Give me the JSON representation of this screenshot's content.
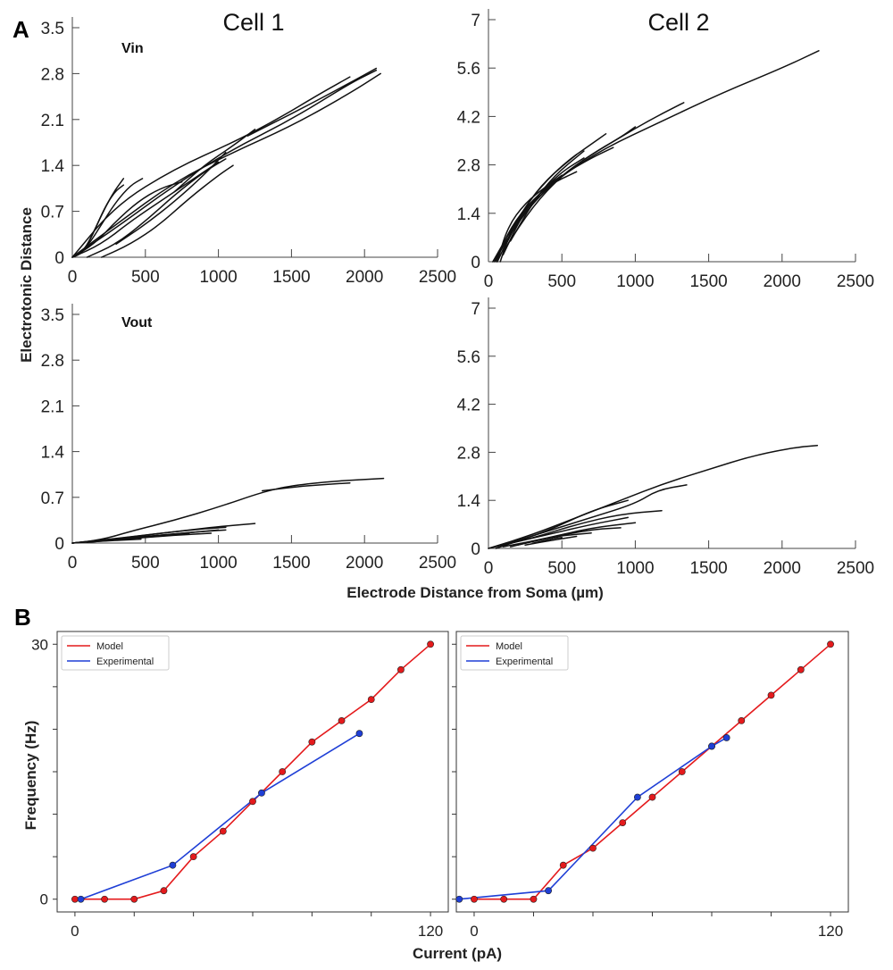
{
  "panel_a_label": "A",
  "panel_b_label": "B",
  "chart_data": [
    {
      "id": "a1",
      "type": "line",
      "title": "Cell 1",
      "annotation": "Vin",
      "ylabel": "Electrotonic Distance",
      "xlabel": "",
      "xlim": [
        0,
        2500
      ],
      "ylim": [
        0,
        3.5
      ],
      "xticks": [
        "0",
        "500",
        "1000",
        "1500",
        "2000",
        "2500"
      ],
      "yticks": [
        "0",
        "0.7",
        "1.4",
        "2.1",
        "2.8",
        "3.5"
      ],
      "series": [
        {
          "x": [
            0,
            60,
            120,
            190,
            270,
            350
          ],
          "y": [
            0,
            0.05,
            0.25,
            0.6,
            0.95,
            1.2
          ]
        },
        {
          "x": [
            0,
            80,
            150,
            220,
            290,
            350
          ],
          "y": [
            0,
            0.1,
            0.4,
            0.75,
            1.0,
            1.1
          ]
        },
        {
          "x": [
            0,
            100,
            200,
            300,
            400,
            480
          ],
          "y": [
            0,
            0.15,
            0.5,
            0.85,
            1.1,
            1.2
          ]
        },
        {
          "x": [
            0,
            150,
            300,
            450,
            600,
            750
          ],
          "y": [
            0,
            0.2,
            0.55,
            0.85,
            1.05,
            1.15
          ]
        },
        {
          "x": [
            0,
            200,
            400,
            600,
            800,
            1000
          ],
          "y": [
            0,
            0.2,
            0.55,
            0.85,
            1.15,
            1.45
          ]
        },
        {
          "x": [
            100,
            300,
            500,
            700,
            900,
            1050
          ],
          "y": [
            0,
            0.2,
            0.55,
            0.95,
            1.3,
            1.5
          ]
        },
        {
          "x": [
            200,
            400,
            600,
            800,
            1000,
            1100
          ],
          "y": [
            0,
            0.2,
            0.5,
            0.9,
            1.25,
            1.4
          ]
        },
        {
          "x": [
            300,
            500,
            700,
            900,
            1050
          ],
          "y": [
            0.2,
            0.5,
            0.85,
            1.25,
            1.6
          ]
        },
        {
          "x": [
            0,
            300,
            700,
            1100,
            1500,
            1900,
            2080
          ],
          "y": [
            0,
            0.45,
            1.1,
            1.65,
            2.1,
            2.65,
            2.85
          ]
        },
        {
          "x": [
            0,
            300,
            700,
            1100,
            1500,
            1900,
            2110
          ],
          "y": [
            0,
            0.5,
            1.15,
            1.6,
            2.0,
            2.5,
            2.8
          ]
        },
        {
          "x": [
            0,
            300,
            700,
            1100,
            1400,
            1700,
            1900
          ],
          "y": [
            0,
            0.8,
            1.35,
            1.75,
            2.1,
            2.5,
            2.75
          ]
        },
        {
          "x": [
            1200,
            1600,
            2000,
            2080
          ],
          "y": [
            1.85,
            2.3,
            2.78,
            2.88
          ]
        },
        {
          "x": [
            700,
            900,
            1100,
            1250
          ],
          "y": [
            1.0,
            1.4,
            1.7,
            1.95
          ]
        }
      ]
    },
    {
      "id": "a2",
      "type": "line",
      "title": "Cell 2",
      "annotation": "",
      "ylabel": "",
      "xlabel": "",
      "xlim": [
        0,
        2500
      ],
      "ylim": [
        0,
        7
      ],
      "xticks": [
        "0",
        "500",
        "1000",
        "1500",
        "2000",
        "2500"
      ],
      "yticks": [
        "0",
        "1.4",
        "2.8",
        "4.2",
        "5.6",
        "7"
      ],
      "series": [
        {
          "x": [
            30,
            150,
            300,
            500,
            800,
            1150,
            1600,
            2000,
            2250
          ],
          "y": [
            0,
            0.8,
            1.7,
            2.5,
            3.3,
            4.0,
            4.9,
            5.6,
            6.1
          ]
        },
        {
          "x": [
            30,
            150,
            300,
            500,
            700,
            800
          ],
          "y": [
            0,
            0.9,
            1.9,
            2.8,
            3.4,
            3.7
          ]
        },
        {
          "x": [
            40,
            150,
            300,
            500,
            700,
            900,
            1000
          ],
          "y": [
            0,
            0.8,
            1.7,
            2.5,
            3.1,
            3.6,
            3.9
          ]
        },
        {
          "x": [
            50,
            150,
            300,
            500,
            700,
            850
          ],
          "y": [
            0,
            1.0,
            1.8,
            2.5,
            3.0,
            3.3
          ]
        },
        {
          "x": [
            60,
            150,
            250,
            400,
            600
          ],
          "y": [
            0,
            0.8,
            1.5,
            2.2,
            2.6
          ]
        },
        {
          "x": [
            60,
            130,
            250,
            400,
            500
          ],
          "y": [
            0,
            1.0,
            1.7,
            2.2,
            2.5
          ]
        },
        {
          "x": [
            80,
            150,
            250,
            350
          ],
          "y": [
            0,
            0.9,
            1.5,
            1.9
          ]
        },
        {
          "x": [
            100,
            200,
            300,
            450
          ],
          "y": [
            0.2,
            1.1,
            1.8,
            2.3
          ]
        },
        {
          "x": [
            100,
            300,
            500,
            700,
            900,
            1100,
            1330
          ],
          "y": [
            0.3,
            1.6,
            2.5,
            3.1,
            3.6,
            4.1,
            4.6
          ]
        },
        {
          "x": [
            120,
            250,
            400,
            600
          ],
          "y": [
            0.5,
            1.6,
            2.4,
            3.1
          ]
        },
        {
          "x": [
            150,
            300,
            450,
            650
          ],
          "y": [
            0.6,
            1.7,
            2.5,
            3.2
          ]
        },
        {
          "x": [
            200,
            350,
            500,
            650
          ],
          "y": [
            1.2,
            2.0,
            2.6,
            3.0
          ]
        }
      ]
    },
    {
      "id": "a3",
      "type": "line",
      "title": "",
      "annotation": "Vout",
      "ylabel": "",
      "xlabel": "",
      "xlim": [
        0,
        2500
      ],
      "ylim": [
        0,
        3.5
      ],
      "xticks": [
        "0",
        "500",
        "1000",
        "1500",
        "2000",
        "2500"
      ],
      "yticks": [
        "0",
        "0.7",
        "1.4",
        "2.1",
        "2.8",
        "3.5"
      ],
      "series": [
        {
          "x": [
            0,
            200,
            400,
            700,
            1000,
            1300,
            1500,
            1800,
            2130
          ],
          "y": [
            0,
            0.05,
            0.18,
            0.35,
            0.55,
            0.78,
            0.88,
            0.95,
            0.99
          ]
        },
        {
          "x": [
            1300,
            1600,
            1900
          ],
          "y": [
            0.8,
            0.88,
            0.92
          ]
        },
        {
          "x": [
            0,
            200,
            500,
            800,
            1000,
            1250
          ],
          "y": [
            0,
            0.04,
            0.12,
            0.2,
            0.25,
            0.3
          ]
        },
        {
          "x": [
            0,
            300,
            600,
            900,
            1050
          ],
          "y": [
            0,
            0.07,
            0.15,
            0.22,
            0.24
          ]
        },
        {
          "x": [
            0,
            300,
            600,
            900,
            1050
          ],
          "y": [
            0,
            0.06,
            0.12,
            0.18,
            0.2
          ]
        },
        {
          "x": [
            100,
            400,
            700,
            1000
          ],
          "y": [
            0.02,
            0.08,
            0.14,
            0.2
          ]
        },
        {
          "x": [
            100,
            400,
            700,
            950
          ],
          "y": [
            0.01,
            0.07,
            0.12,
            0.15
          ]
        },
        {
          "x": [
            200,
            500,
            800
          ],
          "y": [
            0.03,
            0.09,
            0.14
          ]
        },
        {
          "x": [
            0,
            200,
            470
          ],
          "y": [
            0,
            0.03,
            0.06
          ]
        }
      ]
    },
    {
      "id": "a4",
      "type": "line",
      "title": "",
      "annotation": "",
      "ylabel": "",
      "xlabel": "",
      "xlim": [
        0,
        2500
      ],
      "ylim": [
        0,
        7
      ],
      "xticks": [
        "0",
        "500",
        "1000",
        "1500",
        "2000",
        "2500"
      ],
      "yticks": [
        "0",
        "1.4",
        "2.8",
        "4.2",
        "5.6",
        "7"
      ],
      "series": [
        {
          "x": [
            0,
            300,
            600,
            900,
            1200,
            1500,
            1800,
            2100,
            2240
          ],
          "y": [
            0,
            0.4,
            0.9,
            1.4,
            1.9,
            2.3,
            2.7,
            2.95,
            3.0
          ]
        },
        {
          "x": [
            100,
            400,
            700,
            1000,
            1150,
            1350
          ],
          "y": [
            0.1,
            0.5,
            0.9,
            1.3,
            1.7,
            1.85
          ]
        },
        {
          "x": [
            0,
            300,
            600,
            900,
            1180
          ],
          "y": [
            0,
            0.3,
            0.7,
            1.0,
            1.1
          ]
        },
        {
          "x": [
            50,
            400,
            700,
            950
          ],
          "y": [
            0,
            0.5,
            1.1,
            1.4
          ]
        },
        {
          "x": [
            100,
            400,
            700,
            950
          ],
          "y": [
            0.1,
            0.4,
            0.7,
            0.9
          ]
        },
        {
          "x": [
            100,
            400,
            700,
            1000
          ],
          "y": [
            0.05,
            0.3,
            0.6,
            0.75
          ]
        },
        {
          "x": [
            150,
            400,
            700,
            900
          ],
          "y": [
            0.05,
            0.3,
            0.55,
            0.6
          ]
        },
        {
          "x": [
            200,
            450,
            700
          ],
          "y": [
            0.1,
            0.35,
            0.45
          ]
        },
        {
          "x": [
            250,
            450,
            600
          ],
          "y": [
            0.1,
            0.25,
            0.35
          ]
        },
        {
          "x": [
            300,
            450,
            500
          ],
          "y": [
            0.15,
            0.3,
            0.32
          ]
        }
      ]
    },
    {
      "id": "b1",
      "type": "line",
      "title": "",
      "ylabel": "Frequency (Hz)",
      "xlabel": "",
      "xlim": [
        -6,
        126
      ],
      "ylim": [
        -1.5,
        31.5
      ],
      "xticks": [
        "0",
        "120"
      ],
      "yticks": [
        "0",
        "30"
      ],
      "legend": {
        "position": "top-left",
        "entries": [
          "Model",
          "Experimental"
        ]
      },
      "series": [
        {
          "name": "Model",
          "color": "#e41a1c",
          "x": [
            0,
            10,
            20,
            30,
            40,
            50,
            60,
            70,
            80,
            90,
            100,
            110,
            120
          ],
          "y": [
            0,
            0,
            0,
            1,
            5,
            8,
            11.5,
            15,
            18.5,
            21,
            23.5,
            27,
            30
          ]
        },
        {
          "name": "Experimental",
          "color": "#1f3fd6",
          "x": [
            2,
            33,
            63,
            96
          ],
          "y": [
            0,
            4,
            12.5,
            19.5
          ]
        }
      ]
    },
    {
      "id": "b2",
      "type": "line",
      "title": "",
      "ylabel": "",
      "xlabel": "",
      "xlim": [
        -6,
        126
      ],
      "ylim": [
        -1.5,
        31.5
      ],
      "xticks": [
        "0",
        "120"
      ],
      "yticks": [],
      "legend": {
        "position": "top-left",
        "entries": [
          "Model",
          "Experimental"
        ]
      },
      "series": [
        {
          "name": "Model",
          "color": "#e41a1c",
          "x": [
            0,
            10,
            20,
            30,
            40,
            50,
            60,
            70,
            80,
            90,
            100,
            110,
            120
          ],
          "y": [
            0,
            0,
            0,
            4,
            6,
            9,
            12,
            15,
            18,
            21,
            24,
            27,
            30
          ]
        },
        {
          "name": "Experimental",
          "color": "#1f3fd6",
          "x": [
            -5,
            25,
            55,
            80,
            85
          ],
          "y": [
            0,
            1,
            12,
            18,
            19
          ]
        }
      ]
    }
  ],
  "shared": {
    "a_xlabel": "Electrode Distance from Soma (µm)",
    "b_xlabel": "Current (pA)"
  }
}
